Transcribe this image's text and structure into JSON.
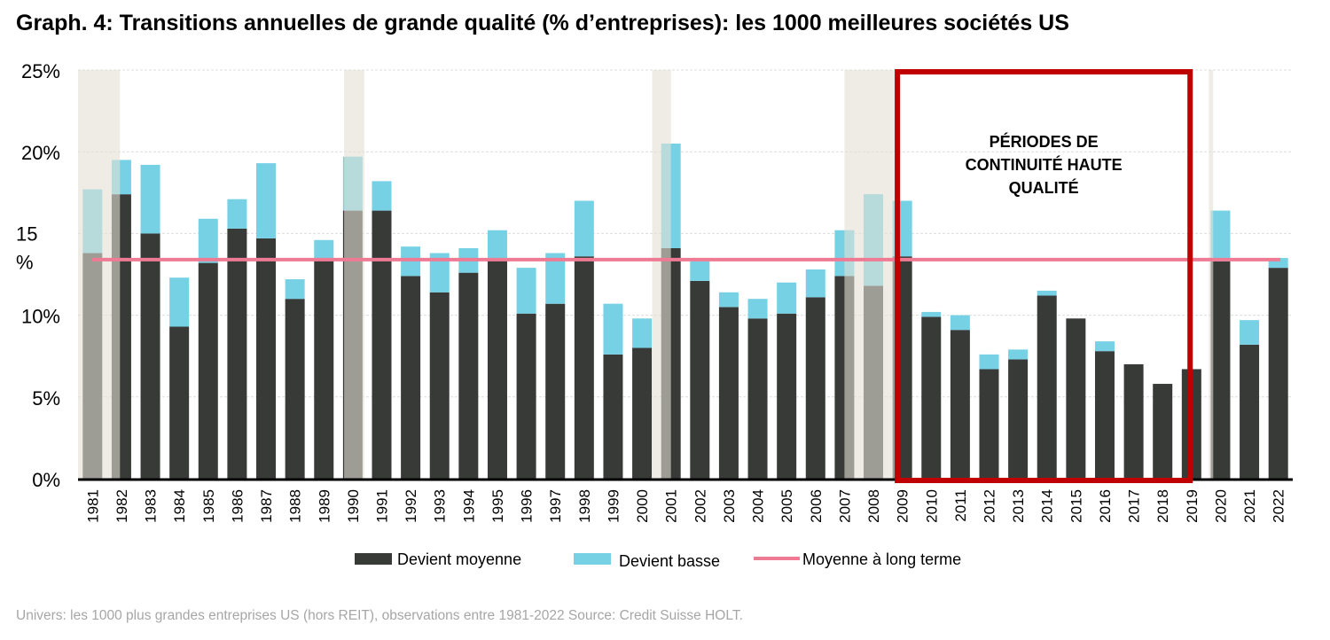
{
  "title": "Graph. 4: Transitions annuelles de grande qualité (% d’entreprises): les 1000 meilleures sociétés US",
  "source": "Univers: les 1000 plus grandes entreprises US (hors REIT), observations entre 1981-2022 Source: Credit Suisse HOLT.",
  "chart_data": {
    "type": "bar",
    "stacked": true,
    "title": "Graph. 4: Transitions annuelles de grande qualité (% d’entreprises): les 1000 meilleures sociétés US",
    "xlabel": "",
    "ylabel": "",
    "ylim": [
      0,
      25
    ],
    "yticks": [
      {
        "value": 0,
        "label": "0%"
      },
      {
        "value": 5,
        "label": "5%"
      },
      {
        "value": 10,
        "label": "10%"
      },
      {
        "value": 15,
        "label": "15 %"
      },
      {
        "value": 20,
        "label": "20%"
      },
      {
        "value": 25,
        "label": "25%"
      }
    ],
    "grid": true,
    "categories": [
      "1981",
      "1982",
      "1983",
      "1984",
      "1985",
      "1986",
      "1987",
      "1988",
      "1989",
      "1990",
      "1991",
      "1992",
      "1993",
      "1994",
      "1995",
      "1996",
      "1997",
      "1998",
      "1999",
      "2000",
      "2001",
      "2002",
      "2003",
      "2004",
      "2005",
      "2006",
      "2007",
      "2008",
      "2009",
      "2010",
      "2011",
      "2012",
      "2013",
      "2014",
      "2015",
      "2016",
      "2017",
      "2018",
      "2019",
      "2020",
      "2021",
      "2022"
    ],
    "series": [
      {
        "name": "Devient moyenne",
        "color": "#383a38",
        "values": [
          13.8,
          17.4,
          15.0,
          9.3,
          13.2,
          15.3,
          14.7,
          11.0,
          13.5,
          16.4,
          16.4,
          12.4,
          11.4,
          12.6,
          13.4,
          10.1,
          10.7,
          13.6,
          7.6,
          8.0,
          14.1,
          12.1,
          10.5,
          9.8,
          10.1,
          11.1,
          12.4,
          11.8,
          13.6,
          9.9,
          9.1,
          6.7,
          7.3,
          11.2,
          9.8,
          7.8,
          7.0,
          5.8,
          6.7,
          13.3,
          8.2,
          12.9
        ]
      },
      {
        "name": "Devient basse",
        "color": "#76d1e5",
        "values": [
          3.9,
          2.1,
          4.2,
          3.0,
          2.7,
          1.8,
          4.6,
          1.2,
          1.1,
          3.3,
          1.8,
          1.8,
          2.4,
          1.5,
          1.8,
          2.8,
          3.1,
          3.4,
          3.1,
          1.8,
          6.4,
          1.2,
          0.9,
          1.2,
          1.9,
          1.7,
          2.8,
          5.6,
          3.4,
          0.3,
          0.9,
          0.9,
          0.6,
          0.3,
          0.0,
          0.6,
          0.0,
          0.0,
          0.0,
          3.1,
          1.5,
          0.6
        ]
      }
    ],
    "reference_line": {
      "name": "Moyenne à long terme",
      "value": 13.4,
      "color": "#ef7a94"
    },
    "shaded_periods": [
      [
        1980.5,
        1981.95
      ],
      [
        1989.7,
        1990.4
      ],
      [
        2000.35,
        2001.0
      ],
      [
        2007.0,
        2008.8
      ],
      [
        2019.6,
        2019.75
      ]
    ],
    "highlight_box": {
      "from": 2008.83,
      "to": 2018.95,
      "color": "#c00000",
      "label_lines": [
        "PÉRIODES DE",
        "CONTINUITÉ HAUTE",
        "QUALITÉ"
      ]
    },
    "legend": {
      "placement": "bottom",
      "entries": [
        "Devient moyenne",
        "Devient basse",
        "Moyenne à long terme"
      ]
    }
  }
}
